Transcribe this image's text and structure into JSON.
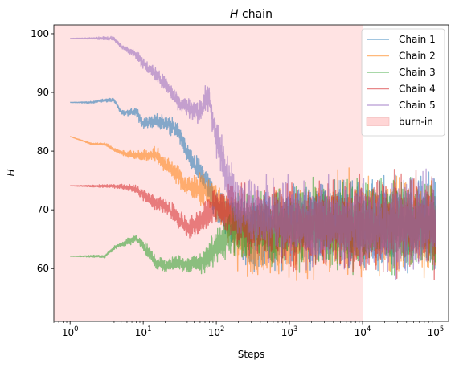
{
  "chart_data": {
    "type": "line",
    "title": "H chain",
    "title_italic_part": "H",
    "title_rest": " chain",
    "xlabel": "Steps",
    "ylabel": "H",
    "xscale": "log",
    "xlim": [
      0.6,
      150000
    ],
    "ylim": [
      51,
      101.5
    ],
    "x_tick_labels": [
      {
        "value": 1,
        "base": "10",
        "exp": "0"
      },
      {
        "value": 10,
        "base": "10",
        "exp": "1"
      },
      {
        "value": 100,
        "base": "10",
        "exp": "2"
      },
      {
        "value": 1000,
        "base": "10",
        "exp": "3"
      },
      {
        "value": 10000,
        "base": "10",
        "exp": "4"
      },
      {
        "value": 100000,
        "base": "10",
        "exp": "5"
      }
    ],
    "y_ticks": [
      60,
      70,
      80,
      90,
      100
    ],
    "burn_in": {
      "label": "burn-in",
      "x_start": 0.6,
      "x_end": 10000,
      "color": "#ffcccc"
    },
    "legend_position": "top-right",
    "series": [
      {
        "name": "Chain 1",
        "color": "#1f77b4",
        "trend": [
          [
            1,
            88.3
          ],
          [
            2,
            88.3
          ],
          [
            3,
            88.7
          ],
          [
            4,
            88.7
          ],
          [
            5,
            86.6
          ],
          [
            8,
            86.6
          ],
          [
            10,
            84.8
          ],
          [
            15,
            85.2
          ],
          [
            20,
            84.9
          ],
          [
            30,
            83.4
          ],
          [
            40,
            79.5
          ],
          [
            50,
            77.5
          ],
          [
            70,
            75.5
          ],
          [
            100,
            70.5
          ],
          [
            150,
            68.5
          ],
          [
            200,
            66.5
          ],
          [
            300,
            65.5
          ],
          [
            500,
            66.5
          ],
          [
            1000,
            67
          ],
          [
            3000,
            67.5
          ],
          [
            10000,
            67.5
          ],
          [
            100000,
            67.5
          ]
        ],
        "amplitude": [
          [
            1,
            0
          ],
          [
            5,
            0.3
          ],
          [
            10,
            0.8
          ],
          [
            50,
            1.5
          ],
          [
            100,
            2.5
          ],
          [
            200,
            4
          ],
          [
            500,
            5
          ],
          [
            1000,
            5.5
          ],
          [
            10000,
            6
          ],
          [
            100000,
            6.5
          ]
        ]
      },
      {
        "name": "Chain 2",
        "color": "#ff7f0e",
        "trend": [
          [
            1,
            82.5
          ],
          [
            2,
            81.2
          ],
          [
            3,
            81.2
          ],
          [
            4,
            80.3
          ],
          [
            6,
            79.4
          ],
          [
            10,
            79.3
          ],
          [
            15,
            79.4
          ],
          [
            20,
            77.8
          ],
          [
            30,
            76
          ],
          [
            40,
            74
          ],
          [
            60,
            73.5
          ],
          [
            80,
            73
          ],
          [
            100,
            71
          ],
          [
            150,
            68.5
          ],
          [
            200,
            66
          ],
          [
            300,
            64.5
          ],
          [
            500,
            65
          ],
          [
            1000,
            66
          ],
          [
            3000,
            66.8
          ],
          [
            10000,
            67.5
          ],
          [
            100000,
            67.5
          ]
        ],
        "amplitude": [
          [
            1,
            0
          ],
          [
            5,
            0.3
          ],
          [
            10,
            0.8
          ],
          [
            50,
            1.8
          ],
          [
            100,
            2.5
          ],
          [
            200,
            4.5
          ],
          [
            500,
            5.5
          ],
          [
            1000,
            6
          ],
          [
            10000,
            6.5
          ],
          [
            100000,
            6.5
          ]
        ]
      },
      {
        "name": "Chain 3",
        "color": "#2ca02c",
        "trend": [
          [
            1,
            62.1
          ],
          [
            3,
            62.1
          ],
          [
            4,
            63.5
          ],
          [
            6,
            64.5
          ],
          [
            8,
            65.2
          ],
          [
            10,
            64
          ],
          [
            15,
            61
          ],
          [
            20,
            60.5
          ],
          [
            30,
            61
          ],
          [
            40,
            60.5
          ],
          [
            60,
            61
          ],
          [
            80,
            62
          ],
          [
            100,
            64
          ],
          [
            150,
            66
          ],
          [
            200,
            67
          ],
          [
            300,
            67.5
          ],
          [
            1000,
            67.5
          ],
          [
            10000,
            67.5
          ],
          [
            100000,
            67.5
          ]
        ],
        "amplitude": [
          [
            1,
            0
          ],
          [
            5,
            0.3
          ],
          [
            10,
            0.8
          ],
          [
            50,
            1.2
          ],
          [
            100,
            2.5
          ],
          [
            200,
            4
          ],
          [
            500,
            5
          ],
          [
            1000,
            5.5
          ],
          [
            10000,
            6
          ],
          [
            100000,
            6.5
          ]
        ]
      },
      {
        "name": "Chain 4",
        "color": "#d62728",
        "trend": [
          [
            1,
            74.1
          ],
          [
            5,
            74
          ],
          [
            8,
            73.5
          ],
          [
            10,
            72.5
          ],
          [
            15,
            71
          ],
          [
            20,
            70.5
          ],
          [
            30,
            68.5
          ],
          [
            40,
            67
          ],
          [
            60,
            68
          ],
          [
            80,
            69.5
          ],
          [
            100,
            70.5
          ],
          [
            150,
            70
          ],
          [
            200,
            69
          ],
          [
            300,
            68
          ],
          [
            1000,
            67.5
          ],
          [
            10000,
            67.5
          ],
          [
            100000,
            67.5
          ]
        ],
        "amplitude": [
          [
            1,
            0
          ],
          [
            5,
            0.3
          ],
          [
            10,
            0.8
          ],
          [
            50,
            1.8
          ],
          [
            100,
            2.5
          ],
          [
            200,
            4
          ],
          [
            500,
            5
          ],
          [
            1000,
            5.5
          ],
          [
            10000,
            6
          ],
          [
            100000,
            6.5
          ]
        ]
      },
      {
        "name": "Chain 5",
        "color": "#9467bd",
        "trend": [
          [
            1,
            99.2
          ],
          [
            3,
            99.2
          ],
          [
            4,
            99.2
          ],
          [
            5,
            97.8
          ],
          [
            8,
            96.5
          ],
          [
            10,
            95
          ],
          [
            15,
            93
          ],
          [
            20,
            91.5
          ],
          [
            30,
            88.5
          ],
          [
            40,
            87.5
          ],
          [
            50,
            87
          ],
          [
            60,
            86.5
          ],
          [
            70,
            88.5
          ],
          [
            80,
            89
          ],
          [
            100,
            82
          ],
          [
            130,
            78
          ],
          [
            160,
            73
          ],
          [
            200,
            71
          ],
          [
            300,
            69.5
          ],
          [
            500,
            68.5
          ],
          [
            1000,
            68
          ],
          [
            10000,
            67.5
          ],
          [
            100000,
            67.5
          ]
        ],
        "amplitude": [
          [
            1,
            0
          ],
          [
            5,
            0.3
          ],
          [
            10,
            0.8
          ],
          [
            50,
            1.5
          ],
          [
            100,
            2.5
          ],
          [
            200,
            4
          ],
          [
            500,
            5
          ],
          [
            1000,
            5.5
          ],
          [
            10000,
            6
          ],
          [
            100000,
            6.5
          ]
        ]
      }
    ]
  }
}
